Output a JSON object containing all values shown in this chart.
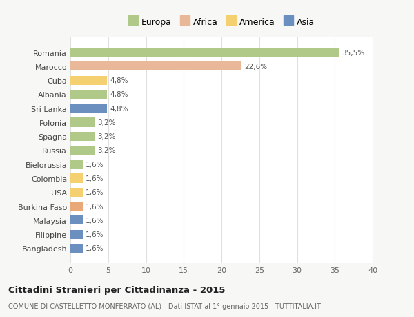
{
  "categories": [
    "Bangladesh",
    "Filippine",
    "Malaysia",
    "Burkina Faso",
    "USA",
    "Colombia",
    "Bielorussia",
    "Russia",
    "Spagna",
    "Polonia",
    "Sri Lanka",
    "Albania",
    "Cuba",
    "Marocco",
    "Romania"
  ],
  "values": [
    1.6,
    1.6,
    1.6,
    1.6,
    1.6,
    1.6,
    1.6,
    3.2,
    3.2,
    3.2,
    4.8,
    4.8,
    4.8,
    22.6,
    35.5
  ],
  "colors": [
    "#6b8fbf",
    "#6b8fbf",
    "#6b8fbf",
    "#e8a878",
    "#f5d070",
    "#f5d070",
    "#b0c888",
    "#b0c888",
    "#b0c888",
    "#b0c888",
    "#6b8fbf",
    "#b0c888",
    "#f5d070",
    "#e8b898",
    "#b0c888"
  ],
  "labels": [
    "1,6%",
    "1,6%",
    "1,6%",
    "1,6%",
    "1,6%",
    "1,6%",
    "1,6%",
    "3,2%",
    "3,2%",
    "3,2%",
    "4,8%",
    "4,8%",
    "4,8%",
    "22,6%",
    "35,5%"
  ],
  "xlim": [
    0,
    40
  ],
  "xticks": [
    0,
    5,
    10,
    15,
    20,
    25,
    30,
    35,
    40
  ],
  "legend_labels": [
    "Europa",
    "Africa",
    "America",
    "Asia"
  ],
  "legend_colors": [
    "#b0c888",
    "#e8b898",
    "#f5d070",
    "#6b8fbf"
  ],
  "title": "Cittadini Stranieri per Cittadinanza - 2015",
  "subtitle": "COMUNE DI CASTELLETTO MONFERRATO (AL) - Dati ISTAT al 1° gennaio 2015 - TUTTITALIA.IT",
  "bg_color": "#f7f7f5",
  "plot_bg_color": "#ffffff"
}
